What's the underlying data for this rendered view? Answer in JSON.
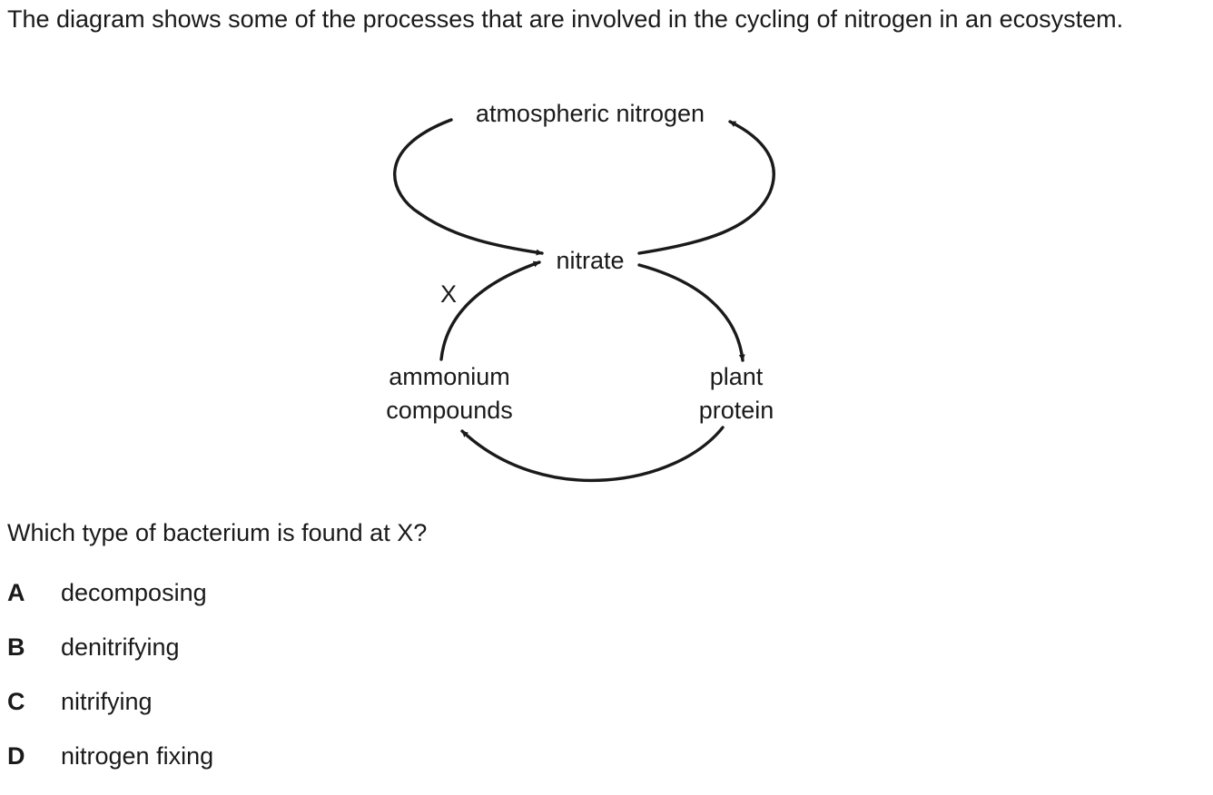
{
  "intro_text": "The diagram shows some of the processes that are involved in the cycling of nitrogen in an ecosystem.",
  "diagram": {
    "atmospheric_nitrogen": "atmospheric nitrogen",
    "nitrate": "nitrate",
    "x_label": "X",
    "ammonium_line1": "ammonium",
    "ammonium_line2": "compounds",
    "plant_line1": "plant",
    "plant_line2": "protein"
  },
  "question": "Which type of bacterium is found at X?",
  "options": [
    {
      "letter": "A",
      "text": "decomposing"
    },
    {
      "letter": "B",
      "text": "denitrifying"
    },
    {
      "letter": "C",
      "text": "nitrifying"
    },
    {
      "letter": "D",
      "text": "nitrogen fixing"
    }
  ]
}
